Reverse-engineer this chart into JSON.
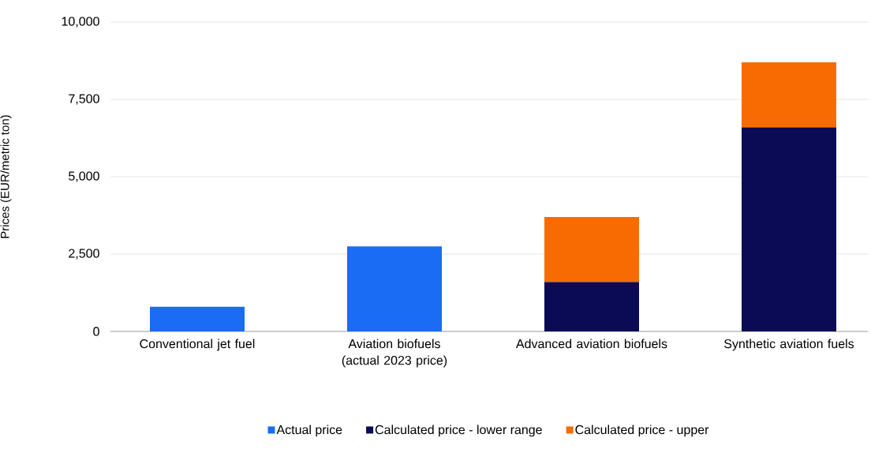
{
  "chart_data": {
    "type": "bar",
    "stacked": true,
    "ylabel": "Prices (EUR/metric ton)",
    "categories": [
      "Conventional jet fuel",
      "Aviation biofuels (actual 2023 price)",
      "Advanced aviation biofuels",
      "Synthetic aviation fuels"
    ],
    "series": [
      {
        "name": "Actual price",
        "color": "#1a6cf5",
        "values": [
          800,
          2750,
          null,
          null
        ]
      },
      {
        "name": "Calculated price - lower range",
        "color": "#0a0a55",
        "values": [
          null,
          null,
          1600,
          6600
        ]
      },
      {
        "name": "Calculated price - upper",
        "color": "#f76b00",
        "values": [
          null,
          null,
          2100,
          2100
        ]
      }
    ],
    "ylim": [
      0,
      10000
    ],
    "yticks": [
      0,
      {
        "value": 2500,
        "label": "2,500"
      },
      {
        "value": 5000,
        "label": "5,000"
      },
      {
        "value": 7500,
        "label": "7,500"
      },
      {
        "value": 10000,
        "label": "10,000"
      }
    ],
    "grid": "y",
    "legend": "bottom"
  }
}
